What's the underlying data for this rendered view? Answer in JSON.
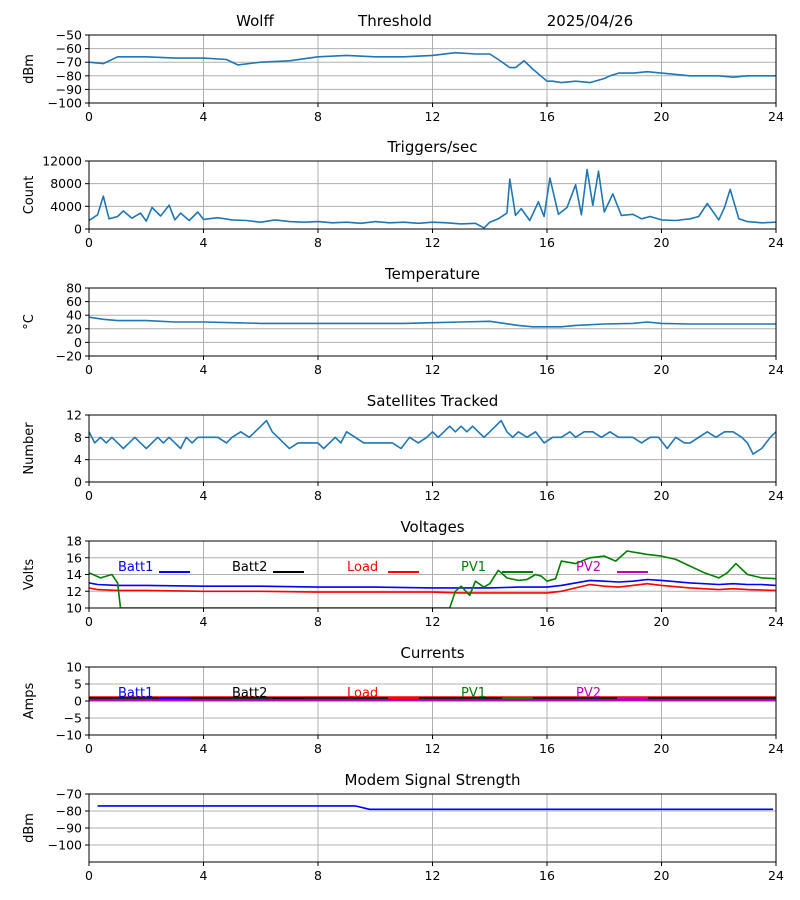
{
  "header": {
    "station": "Wolff",
    "mode": "Threshold",
    "date": "2025/04/26"
  },
  "chart_data": [
    {
      "id": "threshold",
      "type": "line",
      "title": "",
      "ylabel": "dBm",
      "xlim": [
        0,
        24
      ],
      "ylim": [
        -100,
        -50
      ],
      "xticks": [
        "0",
        "4",
        "8",
        "12",
        "16",
        "20",
        "24"
      ],
      "yticks": [
        "−100",
        "−90",
        "−80",
        "−70",
        "−60",
        "−50"
      ],
      "ytick_values": [
        -100,
        -90,
        -80,
        -70,
        -60,
        -50
      ],
      "grid": true,
      "series": [
        {
          "color": "#1f77b4",
          "x": [
            0,
            0.5,
            1,
            1.5,
            2,
            3,
            4,
            4.8,
            5.2,
            6,
            7,
            8,
            9,
            10,
            11,
            12,
            12.8,
            13.5,
            14,
            14.3,
            14.7,
            14.9,
            15.2,
            15.5,
            16,
            16.2,
            16.5,
            17,
            17.5,
            18,
            18.2,
            18.5,
            19,
            19.5,
            20,
            20.5,
            21,
            21.5,
            22,
            22.5,
            23,
            23.5,
            24
          ],
          "y": [
            -70,
            -71,
            -66,
            -66,
            -66,
            -67,
            -67,
            -68,
            -72,
            -70,
            -69,
            -66,
            -65,
            -66,
            -66,
            -65,
            -63,
            -64,
            -64,
            -68,
            -74,
            -74,
            -69,
            -75,
            -84,
            -84,
            -85,
            -84,
            -85,
            -82,
            -80,
            -78,
            -78,
            -77,
            -78,
            -79,
            -80,
            -80,
            -80,
            -81,
            -80,
            -80,
            -80
          ]
        }
      ]
    },
    {
      "id": "triggers",
      "type": "line",
      "title": "Triggers/sec",
      "ylabel": "Count",
      "xlim": [
        0,
        24
      ],
      "ylim": [
        0,
        12000
      ],
      "xticks": [
        "0",
        "4",
        "8",
        "12",
        "16",
        "20",
        "24"
      ],
      "yticks": [
        "0",
        "4000",
        "8000",
        "12000"
      ],
      "ytick_values": [
        0,
        4000,
        8000,
        12000
      ],
      "grid": true,
      "series": [
        {
          "color": "#1f77b4",
          "x": [
            0,
            0.3,
            0.5,
            0.7,
            1,
            1.2,
            1.5,
            1.8,
            2,
            2.2,
            2.5,
            2.8,
            3,
            3.2,
            3.5,
            3.8,
            4,
            4.5,
            5,
            5.5,
            6,
            6.5,
            7,
            7.5,
            8,
            8.5,
            9,
            9.5,
            10,
            10.5,
            11,
            11.5,
            12,
            12.5,
            13,
            13.5,
            13.8,
            14,
            14.3,
            14.6,
            14.7,
            14.9,
            15.1,
            15.4,
            15.7,
            15.9,
            16.1,
            16.4,
            16.7,
            17,
            17.2,
            17.4,
            17.6,
            17.8,
            18,
            18.3,
            18.6,
            19,
            19.3,
            19.6,
            20,
            20.5,
            21,
            21.3,
            21.6,
            22,
            22.2,
            22.4,
            22.7,
            23,
            23.5,
            24
          ],
          "y": [
            1500,
            2500,
            5800,
            1800,
            2200,
            3200,
            1900,
            2800,
            1400,
            3800,
            2300,
            4200,
            1600,
            2800,
            1500,
            3000,
            1700,
            2000,
            1600,
            1500,
            1200,
            1600,
            1300,
            1200,
            1300,
            1100,
            1200,
            1000,
            1300,
            1100,
            1200,
            1000,
            1200,
            1100,
            900,
            1000,
            200,
            1200,
            1800,
            2800,
            8800,
            2400,
            3600,
            1500,
            4800,
            2200,
            9000,
            2600,
            3800,
            7800,
            2500,
            10500,
            4200,
            10200,
            3000,
            6200,
            2400,
            2600,
            1800,
            2200,
            1600,
            1500,
            1800,
            2200,
            4500,
            1600,
            3800,
            7000,
            1800,
            1300,
            1100,
            1200
          ]
        }
      ]
    },
    {
      "id": "temperature",
      "type": "line",
      "title": "Temperature",
      "ylabel": "°C",
      "xlim": [
        0,
        24
      ],
      "ylim": [
        -20,
        80
      ],
      "xticks": [
        "0",
        "4",
        "8",
        "12",
        "16",
        "20",
        "24"
      ],
      "yticks": [
        "−20",
        "0",
        "20",
        "40",
        "60",
        "80"
      ],
      "ytick_values": [
        -20,
        0,
        20,
        40,
        60,
        80
      ],
      "grid": true,
      "series": [
        {
          "color": "#1f77b4",
          "x": [
            0,
            0.5,
            1,
            2,
            3,
            4,
            5,
            6,
            7,
            8,
            9,
            10,
            11,
            12,
            13,
            14,
            15,
            15.5,
            16,
            16.5,
            17,
            18,
            19,
            19.5,
            20,
            21,
            22,
            23,
            24
          ],
          "y": [
            37,
            34,
            32,
            32,
            30,
            30,
            29,
            28,
            28,
            28,
            28,
            28,
            28,
            29,
            30,
            31,
            25,
            23,
            23,
            23,
            25,
            27,
            28,
            30,
            28,
            27,
            27,
            27,
            27
          ]
        }
      ]
    },
    {
      "id": "satellites",
      "type": "line",
      "title": "Satellites Tracked",
      "ylabel": "Number",
      "xlim": [
        0,
        24
      ],
      "ylim": [
        0,
        12
      ],
      "xticks": [
        "0",
        "4",
        "8",
        "12",
        "16",
        "20",
        "24"
      ],
      "yticks": [
        "0",
        "4",
        "8",
        "12"
      ],
      "ytick_values": [
        0,
        4,
        8,
        12
      ],
      "grid": true,
      "series": [
        {
          "color": "#1f77b4",
          "x": [
            0,
            0.2,
            0.4,
            0.6,
            0.8,
            1,
            1.2,
            1.4,
            1.6,
            1.8,
            2,
            2.2,
            2.4,
            2.6,
            2.8,
            3,
            3.2,
            3.4,
            3.6,
            3.8,
            4,
            4.5,
            4.8,
            5,
            5.3,
            5.6,
            5.8,
            6,
            6.2,
            6.4,
            6.6,
            6.8,
            7,
            7.3,
            7.6,
            7.8,
            8,
            8.2,
            8.4,
            8.6,
            8.8,
            9,
            9.3,
            9.6,
            10,
            10.3,
            10.6,
            10.9,
            11.2,
            11.5,
            11.8,
            12,
            12.2,
            12.4,
            12.6,
            12.8,
            13,
            13.2,
            13.4,
            13.6,
            13.8,
            14,
            14.2,
            14.4,
            14.6,
            14.8,
            15,
            15.3,
            15.6,
            15.9,
            16.2,
            16.5,
            16.8,
            17,
            17.3,
            17.6,
            17.9,
            18.2,
            18.5,
            18.8,
            19,
            19.3,
            19.6,
            19.9,
            20.2,
            20.5,
            20.8,
            21,
            21.3,
            21.6,
            21.9,
            22.2,
            22.5,
            22.8,
            23,
            23.2,
            23.5,
            23.8,
            24
          ],
          "y": [
            9,
            7,
            8,
            7,
            8,
            7,
            6,
            7,
            8,
            7,
            6,
            7,
            8,
            7,
            8,
            7,
            6,
            8,
            7,
            8,
            8,
            8,
            7,
            8,
            9,
            8,
            9,
            10,
            11,
            9,
            8,
            7,
            6,
            7,
            7,
            7,
            7,
            6,
            7,
            8,
            7,
            9,
            8,
            7,
            7,
            7,
            7,
            6,
            8,
            7,
            8,
            9,
            8,
            9,
            10,
            9,
            10,
            9,
            10,
            9,
            8,
            9,
            10,
            11,
            9,
            8,
            9,
            8,
            9,
            7,
            8,
            8,
            9,
            8,
            9,
            9,
            8,
            9,
            8,
            8,
            8,
            7,
            8,
            8,
            6,
            8,
            7,
            7,
            8,
            9,
            8,
            9,
            9,
            8,
            7,
            5,
            6,
            8,
            9
          ]
        }
      ]
    },
    {
      "id": "voltages",
      "type": "line",
      "title": "Voltages",
      "ylabel": "Volts",
      "xlim": [
        0,
        24
      ],
      "ylim": [
        10,
        18
      ],
      "xticks": [
        "0",
        "4",
        "8",
        "12",
        "16",
        "20",
        "24"
      ],
      "yticks": [
        "10",
        "12",
        "14",
        "16",
        "18"
      ],
      "ytick_values": [
        10,
        12,
        14,
        16,
        18
      ],
      "grid": true,
      "legend": [
        {
          "label": "Batt1",
          "color": "#0000ff"
        },
        {
          "label": "Batt2",
          "color": "#000000"
        },
        {
          "label": "Load",
          "color": "#ff0000"
        },
        {
          "label": "PV1",
          "color": "#008000"
        },
        {
          "label": "PV2",
          "color": "#bf00bf"
        }
      ],
      "series": [
        {
          "name": "Batt1",
          "color": "#0000ff",
          "x": [
            0,
            0.3,
            1,
            2,
            4,
            6,
            8,
            10,
            12,
            14,
            15,
            16,
            16.5,
            17,
            17.5,
            18,
            18.5,
            19,
            19.5,
            20,
            21,
            22,
            22.5,
            23,
            23.5,
            24
          ],
          "y": [
            13,
            12.8,
            12.7,
            12.7,
            12.6,
            12.6,
            12.5,
            12.5,
            12.4,
            12.4,
            12.5,
            12.5,
            12.7,
            13,
            13.3,
            13.2,
            13.1,
            13.2,
            13.4,
            13.3,
            13,
            12.8,
            12.9,
            12.8,
            12.8,
            12.7
          ]
        },
        {
          "name": "Load",
          "color": "#ff0000",
          "x": [
            0,
            0.3,
            1,
            2,
            4,
            6,
            8,
            10,
            12,
            13,
            14,
            15,
            16,
            16.5,
            17,
            17.5,
            18,
            18.5,
            19,
            19.5,
            20,
            21,
            22,
            22.5,
            23,
            24
          ],
          "y": [
            12.4,
            12.2,
            12.1,
            12.1,
            12,
            12,
            11.9,
            11.9,
            11.9,
            11.8,
            11.8,
            11.8,
            11.8,
            12,
            12.4,
            12.8,
            12.6,
            12.5,
            12.7,
            12.9,
            12.7,
            12.4,
            12.2,
            12.3,
            12.2,
            12.1
          ]
        },
        {
          "name": "PV1",
          "color": "#008000",
          "x": [
            0,
            0.4,
            0.8,
            1.0,
            1.1,
            12.6,
            12.8,
            13.0,
            13.3,
            13.5,
            13.8,
            14.0,
            14.3,
            14.6,
            15,
            15.3,
            15.6,
            15.8,
            16,
            16.3,
            16.5,
            17,
            17.5,
            18,
            18.4,
            18.8,
            19.5,
            20,
            20.5,
            21,
            21.5,
            22,
            22.3,
            22.6,
            23,
            23.5,
            24
          ],
          "y": [
            14.2,
            13.6,
            14.0,
            13.0,
            10.0,
            10.0,
            12.0,
            12.6,
            11.5,
            13.2,
            12.5,
            12.9,
            14.5,
            13.6,
            13.3,
            13.4,
            14.0,
            13.8,
            13.2,
            13.5,
            15.6,
            15.3,
            16.0,
            16.2,
            15.6,
            16.8,
            16.4,
            16.2,
            15.8,
            15.0,
            14.2,
            13.6,
            14.2,
            15.3,
            14.0,
            13.6,
            13.5
          ]
        },
        {
          "name": "PV2",
          "color": "#bf00bf",
          "x": [],
          "y": []
        },
        {
          "name": "Batt2",
          "color": "#000000",
          "x": [],
          "y": []
        }
      ]
    },
    {
      "id": "currents",
      "type": "line",
      "title": "Currents",
      "ylabel": "Amps",
      "xlim": [
        0,
        24
      ],
      "ylim": [
        -10,
        10
      ],
      "xticks": [
        "0",
        "4",
        "8",
        "12",
        "16",
        "20",
        "24"
      ],
      "yticks": [
        "−10",
        "−5",
        "0",
        "5",
        "10"
      ],
      "ytick_values": [
        -10,
        -5,
        0,
        5,
        10
      ],
      "grid": true,
      "legend": [
        {
          "label": "Batt1",
          "color": "#0000ff"
        },
        {
          "label": "Batt2",
          "color": "#000000"
        },
        {
          "label": "Load",
          "color": "#ff0000"
        },
        {
          "label": "PV1",
          "color": "#008000"
        },
        {
          "label": "PV2",
          "color": "#bf00bf"
        }
      ],
      "series": [
        {
          "name": "Load",
          "color": "#ff0000",
          "x": [
            0,
            24
          ],
          "y": [
            1.1,
            1.1
          ]
        },
        {
          "name": "Batt2",
          "color": "#000000",
          "x": [
            0,
            24
          ],
          "y": [
            0.8,
            0.8
          ]
        },
        {
          "name": "PV1",
          "color": "#008000",
          "x": [
            0,
            24
          ],
          "y": [
            0.4,
            0.4
          ]
        },
        {
          "name": "Batt1",
          "color": "#0000ff",
          "x": [
            0,
            24
          ],
          "y": [
            0.3,
            0.3
          ]
        },
        {
          "name": "PV2",
          "color": "#bf00bf",
          "x": [
            0,
            24
          ],
          "y": [
            0.2,
            0.2
          ]
        }
      ]
    },
    {
      "id": "modem",
      "type": "line",
      "title": "Modem Signal Strength",
      "ylabel": "dBm",
      "xlim": [
        0,
        24
      ],
      "ylim": [
        -110,
        -70
      ],
      "xticks": [
        "0",
        "4",
        "8",
        "12",
        "16",
        "20",
        "24"
      ],
      "yticks": [
        "−100",
        "−90",
        "−80",
        "−70"
      ],
      "ytick_values": [
        -100,
        -90,
        -80,
        -70
      ],
      "grid": true,
      "series": [
        {
          "color": "#0000ff",
          "x": [
            0.3,
            9.3,
            9.8,
            23.9
          ],
          "y": [
            -77,
            -77,
            -79,
            -79
          ]
        }
      ]
    }
  ]
}
